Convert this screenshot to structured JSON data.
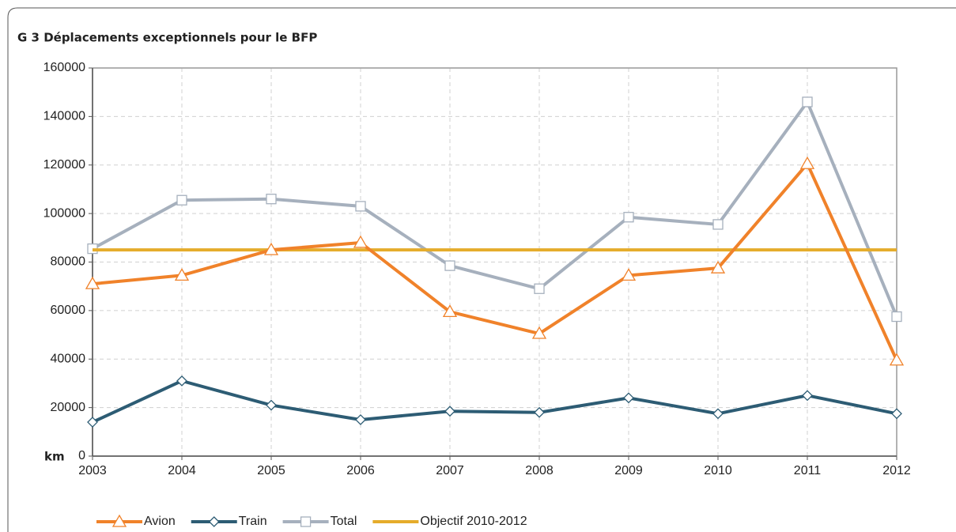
{
  "chart_data": {
    "type": "line",
    "title": "G 3 Déplacements exceptionnels pour le BFP",
    "y_label": "km",
    "categories": [
      "2003",
      "2004",
      "2005",
      "2006",
      "2007",
      "2008",
      "2009",
      "2010",
      "2011",
      "2012"
    ],
    "series": [
      {
        "name": "Avion",
        "color": "#f0822a",
        "marker": "triangle",
        "values": [
          71000,
          74500,
          85000,
          88000,
          59500,
          50500,
          74500,
          77500,
          120500,
          39500
        ]
      },
      {
        "name": "Train",
        "color": "#2d5c74",
        "marker": "diamond",
        "values": [
          14000,
          31000,
          21000,
          15000,
          18500,
          18000,
          24000,
          17500,
          25000,
          17500
        ]
      },
      {
        "name": "Total",
        "color": "#a6b0bd",
        "marker": "square",
        "values": [
          85500,
          105500,
          106000,
          103000,
          78500,
          69000,
          98500,
          95500,
          146000,
          57500
        ]
      },
      {
        "name": "Objectif 2010-2012",
        "color": "#e5ac2b",
        "marker": "none",
        "values": [
          85000,
          85000,
          85000,
          85000,
          85000,
          85000,
          85000,
          85000,
          85000,
          85000
        ]
      }
    ],
    "ylim": [
      0,
      160000
    ],
    "yticks": [
      0,
      20000,
      40000,
      60000,
      80000,
      100000,
      120000,
      140000,
      160000
    ],
    "grid": true,
    "legend": "bottom"
  }
}
